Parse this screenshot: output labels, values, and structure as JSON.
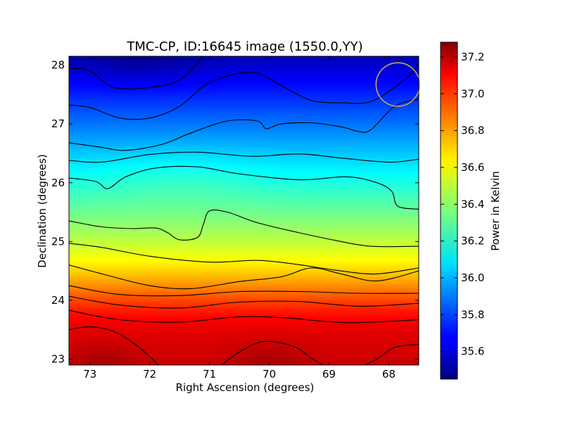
{
  "chart_data": {
    "type": "heatmap",
    "title": "TMC-CP, ID:16645 image (1550.0,YY)",
    "xlabel": "Right Ascension (degrees)",
    "ylabel": "Declination (degrees)",
    "colorbar_label": "Power in Kelvin",
    "xlim": [
      73.35,
      67.5
    ],
    "ylim": [
      22.9,
      28.15
    ],
    "clim": [
      35.45,
      37.28
    ],
    "colormap": "jet",
    "grid": false,
    "x_ticks": [
      {
        "value": 73,
        "label": "73"
      },
      {
        "value": 72,
        "label": "72"
      },
      {
        "value": 71,
        "label": "71"
      },
      {
        "value": 70,
        "label": "70"
      },
      {
        "value": 69,
        "label": "69"
      },
      {
        "value": 68,
        "label": "68"
      }
    ],
    "y_ticks": [
      {
        "value": 23,
        "label": "23"
      },
      {
        "value": 24,
        "label": "24"
      },
      {
        "value": 25,
        "label": "25"
      },
      {
        "value": 26,
        "label": "26"
      },
      {
        "value": 27,
        "label": "27"
      },
      {
        "value": 28,
        "label": "28"
      }
    ],
    "colorbar_ticks": [
      {
        "value": 35.6,
        "label": "35.6"
      },
      {
        "value": 35.8,
        "label": "35.8"
      },
      {
        "value": 36.0,
        "label": "36.0"
      },
      {
        "value": 36.2,
        "label": "36.2"
      },
      {
        "value": 36.4,
        "label": "36.4"
      },
      {
        "value": 36.6,
        "label": "36.6"
      },
      {
        "value": 36.8,
        "label": "36.8"
      },
      {
        "value": 37.0,
        "label": "37.0"
      },
      {
        "value": 37.2,
        "label": "37.2"
      }
    ],
    "contours": [
      {
        "points": [
          [
            73.35,
            27.95
          ],
          [
            73.0,
            27.9
          ],
          [
            72.6,
            27.62
          ],
          [
            72.0,
            27.62
          ],
          [
            71.5,
            27.75
          ],
          [
            71.1,
            28.15
          ]
        ]
      },
      {
        "points": [
          [
            73.35,
            27.32
          ],
          [
            73.0,
            27.28
          ],
          [
            72.5,
            27.1
          ],
          [
            72.0,
            27.1
          ],
          [
            71.5,
            27.3
          ],
          [
            71.0,
            27.7
          ],
          [
            70.3,
            27.88
          ],
          [
            69.8,
            27.65
          ],
          [
            69.3,
            27.4
          ],
          [
            68.8,
            27.36
          ],
          [
            68.3,
            27.38
          ],
          [
            67.8,
            27.7
          ],
          [
            67.5,
            28.0
          ]
        ]
      },
      {
        "points": [
          [
            73.35,
            26.68
          ],
          [
            72.8,
            26.6
          ],
          [
            72.4,
            26.55
          ],
          [
            71.8,
            26.65
          ],
          [
            71.3,
            26.85
          ],
          [
            70.7,
            27.05
          ],
          [
            70.2,
            27.05
          ],
          [
            70.05,
            26.92
          ],
          [
            69.8,
            27.0
          ],
          [
            69.3,
            27.02
          ],
          [
            68.8,
            26.95
          ],
          [
            68.5,
            26.87
          ],
          [
            68.3,
            26.9
          ],
          [
            67.9,
            27.3
          ],
          [
            67.5,
            27.42
          ]
        ]
      },
      {
        "points": [
          [
            73.35,
            26.38
          ],
          [
            72.8,
            26.35
          ],
          [
            72.0,
            26.48
          ],
          [
            71.2,
            26.52
          ],
          [
            70.3,
            26.45
          ],
          [
            69.5,
            26.49
          ],
          [
            68.8,
            26.42
          ],
          [
            68.0,
            26.35
          ],
          [
            67.5,
            26.4
          ]
        ]
      },
      {
        "points": [
          [
            73.35,
            26.08
          ],
          [
            72.9,
            26.02
          ],
          [
            72.7,
            25.9
          ],
          [
            72.4,
            26.1
          ],
          [
            71.9,
            26.25
          ],
          [
            71.2,
            26.27
          ],
          [
            70.5,
            26.15
          ],
          [
            69.5,
            26.05
          ],
          [
            68.7,
            26.1
          ],
          [
            68.2,
            26.0
          ],
          [
            67.95,
            25.85
          ],
          [
            67.85,
            25.6
          ],
          [
            67.5,
            25.55
          ]
        ]
      },
      {
        "points": [
          [
            73.35,
            25.35
          ],
          [
            72.8,
            25.25
          ],
          [
            72.3,
            25.22
          ],
          [
            71.9,
            25.23
          ],
          [
            71.7,
            25.15
          ],
          [
            71.5,
            25.03
          ],
          [
            71.2,
            25.07
          ],
          [
            71.1,
            25.3
          ],
          [
            71.0,
            25.52
          ],
          [
            70.7,
            25.5
          ],
          [
            70.2,
            25.32
          ],
          [
            69.5,
            25.15
          ],
          [
            68.9,
            25.02
          ],
          [
            68.3,
            24.92
          ],
          [
            67.5,
            24.92
          ]
        ]
      },
      {
        "points": [
          [
            73.35,
            24.97
          ],
          [
            72.8,
            24.9
          ],
          [
            72.0,
            24.75
          ],
          [
            71.0,
            24.65
          ],
          [
            70.2,
            24.68
          ],
          [
            69.6,
            24.62
          ],
          [
            68.8,
            24.5
          ],
          [
            68.2,
            24.45
          ],
          [
            67.5,
            24.55
          ]
        ]
      },
      {
        "points": [
          [
            73.35,
            24.6
          ],
          [
            72.8,
            24.45
          ],
          [
            72.0,
            24.25
          ],
          [
            71.3,
            24.2
          ],
          [
            70.5,
            24.32
          ],
          [
            69.8,
            24.4
          ],
          [
            69.3,
            24.55
          ],
          [
            68.8,
            24.45
          ],
          [
            68.2,
            24.33
          ],
          [
            67.5,
            24.5
          ]
        ]
      },
      {
        "points": [
          [
            73.35,
            24.25
          ],
          [
            72.5,
            24.1
          ],
          [
            71.5,
            24.08
          ],
          [
            70.5,
            24.15
          ],
          [
            69.5,
            24.15
          ],
          [
            68.5,
            24.12
          ],
          [
            67.5,
            24.12
          ]
        ]
      },
      {
        "points": [
          [
            73.35,
            24.07
          ],
          [
            72.5,
            23.92
          ],
          [
            71.5,
            23.87
          ],
          [
            70.5,
            23.97
          ],
          [
            69.5,
            23.98
          ],
          [
            68.5,
            23.9
          ],
          [
            67.5,
            23.95
          ]
        ]
      },
      {
        "points": [
          [
            73.35,
            23.83
          ],
          [
            72.5,
            23.67
          ],
          [
            71.5,
            23.63
          ],
          [
            70.5,
            23.72
          ],
          [
            69.7,
            23.7
          ],
          [
            68.7,
            23.62
          ],
          [
            67.5,
            23.67
          ]
        ]
      },
      {
        "points": [
          [
            73.35,
            23.5
          ],
          [
            73.0,
            23.55
          ],
          [
            72.6,
            23.47
          ],
          [
            72.2,
            23.22
          ],
          [
            71.85,
            22.9
          ]
        ]
      },
      {
        "points": [
          [
            70.8,
            22.9
          ],
          [
            70.5,
            23.12
          ],
          [
            70.1,
            23.3
          ],
          [
            69.6,
            23.22
          ],
          [
            69.3,
            23.02
          ],
          [
            69.1,
            22.9
          ]
        ]
      },
      {
        "points": [
          [
            68.4,
            22.9
          ],
          [
            68.2,
            23.0
          ],
          [
            67.9,
            23.2
          ],
          [
            67.5,
            23.25
          ]
        ]
      }
    ],
    "beam_circle": {
      "ra": 67.85,
      "dec": 27.67,
      "radius_deg": 0.37
    }
  }
}
